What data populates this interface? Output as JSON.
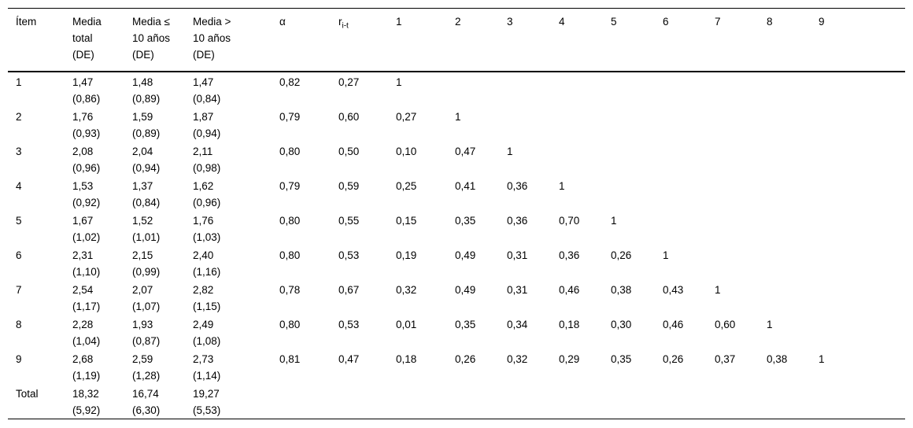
{
  "page": {
    "background": "#ffffff",
    "text_color": "#000000"
  },
  "table": {
    "header": {
      "item": "Ítem",
      "media_total": [
        "Media",
        "total",
        "(DE)"
      ],
      "media_le_10": [
        "Media ≤",
        "10 años",
        "(DE)"
      ],
      "media_gt_10": [
        "Media >",
        "10 años",
        "(DE)"
      ],
      "alpha": "α",
      "r_base": "r",
      "r_sub": "i-t",
      "corr_cols": [
        "1",
        "2",
        "3",
        "4",
        "5",
        "6",
        "7",
        "8",
        "9"
      ]
    },
    "rows": [
      {
        "item": "1",
        "media_total": [
          "1,47",
          "(0,86)"
        ],
        "media_le_10": [
          "1,48",
          "(0,89)"
        ],
        "media_gt_10": [
          "1,47",
          "(0,84)"
        ],
        "alpha": "0,82",
        "rit": "0,27",
        "corr": [
          "1"
        ],
        "corr_bold": [
          0
        ]
      },
      {
        "item": "2",
        "media_total": [
          "1,76",
          "(0,93)"
        ],
        "media_le_10": [
          "1,59",
          "(0,89)"
        ],
        "media_gt_10": [
          "1,87",
          "(0,94)"
        ],
        "alpha": "0,79",
        "rit": "0,60",
        "corr": [
          "0,27",
          "1"
        ],
        "corr_bold": [
          1,
          0
        ]
      },
      {
        "item": "3",
        "media_total": [
          "2,08",
          "(0,96)"
        ],
        "media_le_10": [
          "2,04",
          "(0,94)"
        ],
        "media_gt_10": [
          "2,11",
          "(0,98)"
        ],
        "alpha": "0,80",
        "rit": "0,50",
        "corr": [
          "0,10",
          "0,47",
          "1"
        ],
        "corr_bold": [
          0,
          1,
          0
        ]
      },
      {
        "item": "4",
        "media_total": [
          "1,53",
          "(0,92)"
        ],
        "media_le_10": [
          "1,37",
          "(0,84)"
        ],
        "media_gt_10": [
          "1,62",
          "(0,96)"
        ],
        "alpha": "0,79",
        "rit": "0,59",
        "corr": [
          "0,25",
          "0,41",
          "0,36",
          "1"
        ],
        "corr_bold": [
          1,
          1,
          1,
          0
        ]
      },
      {
        "item": "5",
        "media_total": [
          "1,67",
          "(1,02)"
        ],
        "media_le_10": [
          "1,52",
          "(1,01)"
        ],
        "media_gt_10": [
          "1,76",
          "(1,03)"
        ],
        "alpha": "0,80",
        "rit": "0,55",
        "corr": [
          "0,15",
          "0,35",
          "0,36",
          "0,70",
          "1"
        ],
        "corr_bold": [
          0,
          1,
          1,
          1,
          0
        ]
      },
      {
        "item": "6",
        "media_total": [
          "2,31",
          "(1,10)"
        ],
        "media_le_10": [
          "2,15",
          "(0,99)"
        ],
        "media_gt_10": [
          "2,40",
          "(1,16)"
        ],
        "alpha": "0,80",
        "rit": "0,53",
        "corr": [
          "0,19",
          "0,49",
          "0,31",
          "0,36",
          "0,26",
          "1"
        ],
        "corr_bold": [
          0,
          1,
          1,
          1,
          1,
          0
        ]
      },
      {
        "item": "7",
        "media_total": [
          "2,54",
          "(1,17)"
        ],
        "media_le_10": [
          "2,07",
          "(1,07)"
        ],
        "media_gt_10": [
          "2,82",
          "(1,15)"
        ],
        "alpha": "0,78",
        "rit": "0,67",
        "corr": [
          "0,32",
          "0,49",
          "0,31",
          "0,46",
          "0,38",
          "0,43",
          "1"
        ],
        "corr_bold": [
          1,
          1,
          1,
          1,
          1,
          1,
          0
        ]
      },
      {
        "item": "8",
        "media_total": [
          "2,28",
          "(1,04)"
        ],
        "media_le_10": [
          "1,93",
          "(0,87)"
        ],
        "media_gt_10": [
          "2,49",
          "(1,08)"
        ],
        "alpha": "0,80",
        "rit": "0,53",
        "corr": [
          "0,01",
          "0,35",
          "0,34",
          "0,18",
          "0,30",
          "0,46",
          "0,60",
          "1"
        ],
        "corr_bold": [
          0,
          1,
          1,
          0,
          1,
          1,
          1,
          0
        ]
      },
      {
        "item": "9",
        "media_total": [
          "2,68",
          "(1,19)"
        ],
        "media_le_10": [
          "2,59",
          "(1,28)"
        ],
        "media_gt_10": [
          "2,73",
          "(1,14)"
        ],
        "alpha": "0,81",
        "rit": "0,47",
        "corr": [
          "0,18",
          "0,26",
          "0,32",
          "0,29",
          "0,35",
          "0,26",
          "0,37",
          "0,38",
          "1"
        ],
        "corr_bold": [
          0,
          1,
          1,
          1,
          1,
          1,
          1,
          1,
          0
        ]
      },
      {
        "item": "Total",
        "media_total": [
          "18,32",
          "(5,92)"
        ],
        "media_le_10": [
          "16,74",
          "(6,30)"
        ],
        "media_gt_10": [
          "19,27",
          "(5,53)"
        ],
        "alpha": "",
        "rit": "",
        "corr": [],
        "corr_bold": []
      }
    ]
  }
}
